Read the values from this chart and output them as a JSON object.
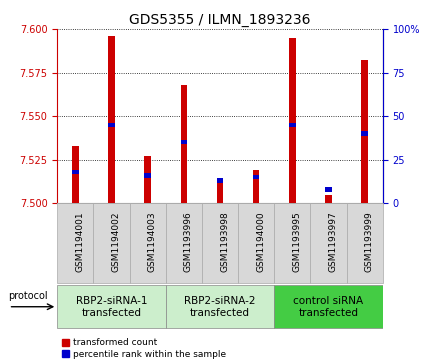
{
  "title": "GDS5355 / ILMN_1893236",
  "samples": [
    "GSM1194001",
    "GSM1194002",
    "GSM1194003",
    "GSM1193996",
    "GSM1193998",
    "GSM1194000",
    "GSM1193995",
    "GSM1193997",
    "GSM1193999"
  ],
  "red_values": [
    7.533,
    7.596,
    7.527,
    7.568,
    7.513,
    7.519,
    7.595,
    7.505,
    7.582
  ],
  "blue_values_pct": [
    18,
    45,
    16,
    35,
    13,
    15,
    45,
    8,
    40
  ],
  "ylim_left": [
    7.5,
    7.6
  ],
  "ylim_right": [
    0,
    100
  ],
  "yticks_left": [
    7.5,
    7.525,
    7.55,
    7.575,
    7.6
  ],
  "yticks_right": [
    0,
    25,
    50,
    75,
    100
  ],
  "group_labels": [
    "RBP2-siRNA-1\ntransfected",
    "RBP2-siRNA-2\ntransfected",
    "control siRNA\ntransfected"
  ],
  "group_ranges": [
    [
      0,
      2
    ],
    [
      3,
      5
    ],
    [
      6,
      8
    ]
  ],
  "group_colors": [
    "#cceecc",
    "#cceecc",
    "#44cc44"
  ],
  "sample_box_color": "#d8d8d8",
  "bar_color_red": "#cc0000",
  "bar_color_blue": "#0000cc",
  "legend_labels": [
    "transformed count",
    "percentile rank within the sample"
  ],
  "protocol_label": "protocol",
  "title_fontsize": 10,
  "tick_fontsize": 7,
  "group_fontsize": 7.5
}
